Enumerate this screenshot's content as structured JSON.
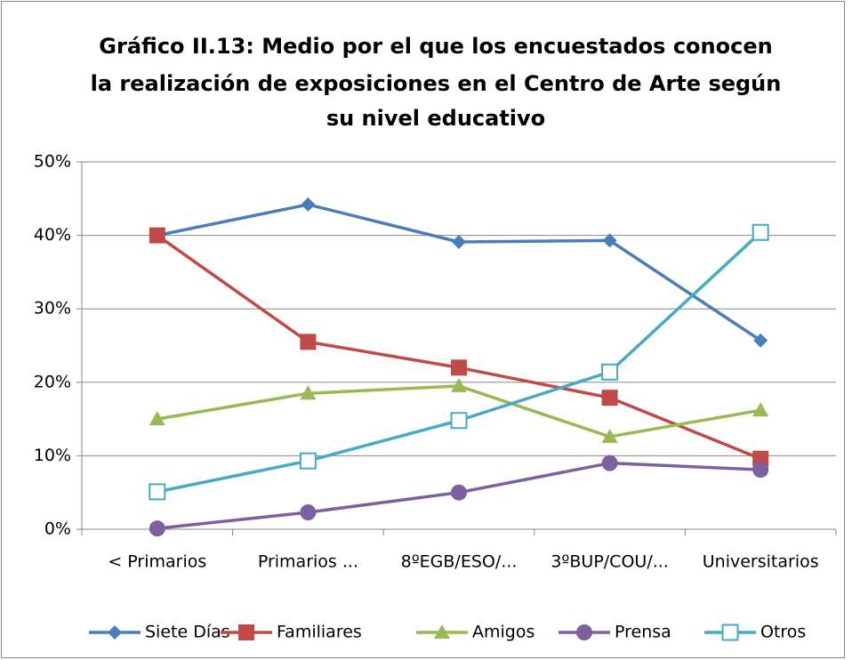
{
  "chart_data": {
    "type": "line",
    "title": [
      "Gráfico II.13: Medio por el que los encuestados conocen",
      "la realización de exposiciones en el Centro de Arte según",
      "su nivel educativo"
    ],
    "categories": [
      "< Primarios",
      "Primarios ...",
      "8ºEGB/ESO/...",
      "3ºBUP/COU/...",
      "Universitarios"
    ],
    "series": [
      {
        "name": "Siete Días",
        "color": "#4a7ebb",
        "marker": "diamond",
        "values": [
          40.0,
          44.2,
          39.1,
          39.3,
          25.7
        ]
      },
      {
        "name": "Familiares",
        "color": "#be4b48",
        "marker": "square",
        "values": [
          40.0,
          25.5,
          22.0,
          17.9,
          9.6
        ]
      },
      {
        "name": "Amigos",
        "color": "#98b954",
        "marker": "triangle",
        "values": [
          15.0,
          18.5,
          19.5,
          12.6,
          16.2
        ]
      },
      {
        "name": "Prensa",
        "color": "#7d60a0",
        "marker": "circle",
        "values": [
          0.1,
          2.3,
          5.0,
          9.0,
          8.1
        ]
      },
      {
        "name": "Otros",
        "color": "#46aac5",
        "marker": "open-square",
        "values": [
          5.1,
          9.3,
          14.8,
          21.4,
          40.4
        ]
      }
    ],
    "ylim": [
      0,
      50
    ],
    "yticks": [
      {
        "value": 0,
        "label": "0%"
      },
      {
        "value": 10,
        "label": "10%"
      },
      {
        "value": 20,
        "label": "20%"
      },
      {
        "value": 30,
        "label": "30%"
      },
      {
        "value": 40,
        "label": "40%"
      },
      {
        "value": 50,
        "label": "50%"
      }
    ],
    "grid": true,
    "legend": "bottom"
  }
}
